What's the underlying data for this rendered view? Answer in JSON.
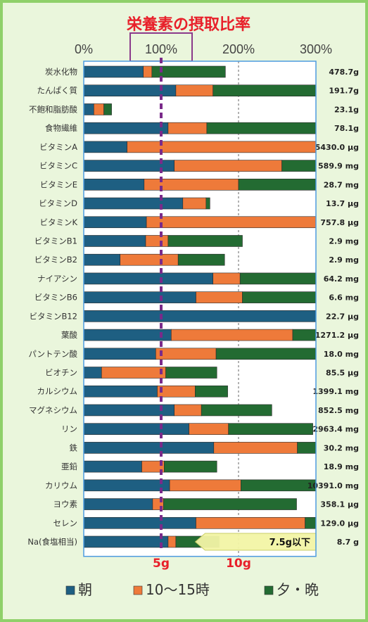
{
  "chart_data": {
    "type": "bar",
    "stacked": true,
    "orientation": "horizontal",
    "title": "栄養素の摂取比率",
    "x_tick_labels": [
      "0%",
      "100%",
      "200%",
      "300%"
    ],
    "xlim": [
      0,
      300
    ],
    "grid": "vertical dashed at 200%",
    "highlighted_tick": "100%",
    "series": [
      {
        "name": "朝",
        "color": "#1e5f82"
      },
      {
        "name": "10～15時",
        "color": "#ee7a3a"
      },
      {
        "name": "夕・晩",
        "color": "#236b32"
      }
    ],
    "rows": [
      {
        "label": "炭水化物",
        "values": [
          77,
          11,
          95
        ],
        "total_label": "478.7g"
      },
      {
        "label": "たんぱく質",
        "values": [
          119,
          48,
          133
        ],
        "total_label": "191.7g"
      },
      {
        "label": "不飽和脂肪酸",
        "values": [
          13,
          13,
          10
        ],
        "total_label": "23.1g"
      },
      {
        "label": "食物繊維",
        "values": [
          109,
          50,
          141
        ],
        "total_label": "78.1g"
      },
      {
        "label": "ビタミンA",
        "values": [
          56,
          244,
          0
        ],
        "total_label": "5430.0 μg"
      },
      {
        "label": "ビタミンC",
        "values": [
          117,
          139,
          44
        ],
        "total_label": "589.9 mg"
      },
      {
        "label": "ビタミンE",
        "values": [
          78,
          122,
          100
        ],
        "total_label": "28.7 mg"
      },
      {
        "label": "ビタミンD",
        "values": [
          128,
          30,
          5
        ],
        "total_label": "13.7 μg"
      },
      {
        "label": "ビタミンK",
        "values": [
          81,
          219,
          0
        ],
        "total_label": "757.8 μg"
      },
      {
        "label": "ビタミンB1",
        "values": [
          80,
          29,
          96
        ],
        "total_label": "2.9 mg"
      },
      {
        "label": "ビタミンB2",
        "values": [
          47,
          75,
          60
        ],
        "total_label": "2.9 mg"
      },
      {
        "label": "ナイアシン",
        "values": [
          167,
          35,
          98
        ],
        "total_label": "64.2 mg"
      },
      {
        "label": "ビタミンB6",
        "values": [
          145,
          60,
          95
        ],
        "total_label": "6.6 mg"
      },
      {
        "label": "ビタミンB12",
        "values": [
          300,
          0,
          0
        ],
        "total_label": "22.7 μg"
      },
      {
        "label": "葉酸",
        "values": [
          113,
          157,
          30
        ],
        "total_label": "1271.2 μg"
      },
      {
        "label": "パントテン酸",
        "values": [
          93,
          78,
          129
        ],
        "total_label": "18.0 mg"
      },
      {
        "label": "ビオチン",
        "values": [
          23,
          83,
          66
        ],
        "total_label": "85.5 μg"
      },
      {
        "label": "カルシウム",
        "values": [
          95,
          49,
          42
        ],
        "total_label": "1399.1 mg"
      },
      {
        "label": "マグネシウム",
        "values": [
          117,
          35,
          91
        ],
        "total_label": "852.5 mg"
      },
      {
        "label": "リン",
        "values": [
          136,
          51,
          109
        ],
        "total_label": "2963.4 mg"
      },
      {
        "label": "鉄",
        "values": [
          168,
          108,
          24
        ],
        "total_label": "30.2 mg"
      },
      {
        "label": "亜鉛",
        "values": [
          75,
          29,
          68
        ],
        "total_label": "18.9 mg"
      },
      {
        "label": "カリウム",
        "values": [
          111,
          92,
          97
        ],
        "total_label": "10391.0 mg"
      },
      {
        "label": "ヨウ素",
        "values": [
          89,
          14,
          172
        ],
        "total_label": "358.1 μg"
      },
      {
        "label": "セレン",
        "values": [
          145,
          141,
          14
        ],
        "total_label": "129.0 μg"
      },
      {
        "label": "Na(食塩相当)",
        "values": [
          109,
          10,
          56
        ],
        "total_label": "8.7 g"
      }
    ],
    "sodium_axis_labels": [
      "5g",
      "10g"
    ],
    "sodium_axis_values": [
      100,
      200
    ],
    "annotation": {
      "text": "7.5g以下",
      "row": "Na(食塩相当)",
      "start": 155,
      "end": 300
    },
    "reference_line": {
      "value": 100,
      "style": "dashed purple"
    }
  }
}
